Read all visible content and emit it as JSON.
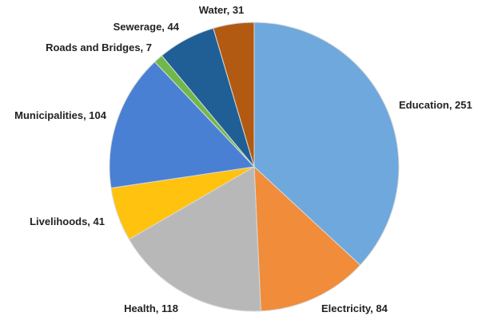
{
  "chart_data": {
    "type": "pie",
    "title": "",
    "slices": [
      {
        "label": "Education",
        "value": 251,
        "color": "#6fa8dc",
        "text": "Education, 251"
      },
      {
        "label": "Electricity",
        "value": 84,
        "color": "#f08c3a",
        "text": "Electricity, 84"
      },
      {
        "label": "Health",
        "value": 118,
        "color": "#b8b8b8",
        "text": "Health, 118"
      },
      {
        "label": "Livelihoods",
        "value": 41,
        "color": "#ffc20e",
        "text": "Livelihoods, 41"
      },
      {
        "label": "Municipalities",
        "value": 104,
        "color": "#4a80d4",
        "text": "Municipalities, 104"
      },
      {
        "label": "Roads and Bridges",
        "value": 7,
        "color": "#6fb84a",
        "text": "Roads and Bridges, 7"
      },
      {
        "label": "Sewerage",
        "value": 44,
        "color": "#1f5f95",
        "text": "Sewerage, 44"
      },
      {
        "label": "Water",
        "value": 31,
        "color": "#b35a12",
        "text": "Water, 31"
      }
    ],
    "start": "12 o'clock",
    "direction": "clockwise",
    "legend": "none"
  }
}
